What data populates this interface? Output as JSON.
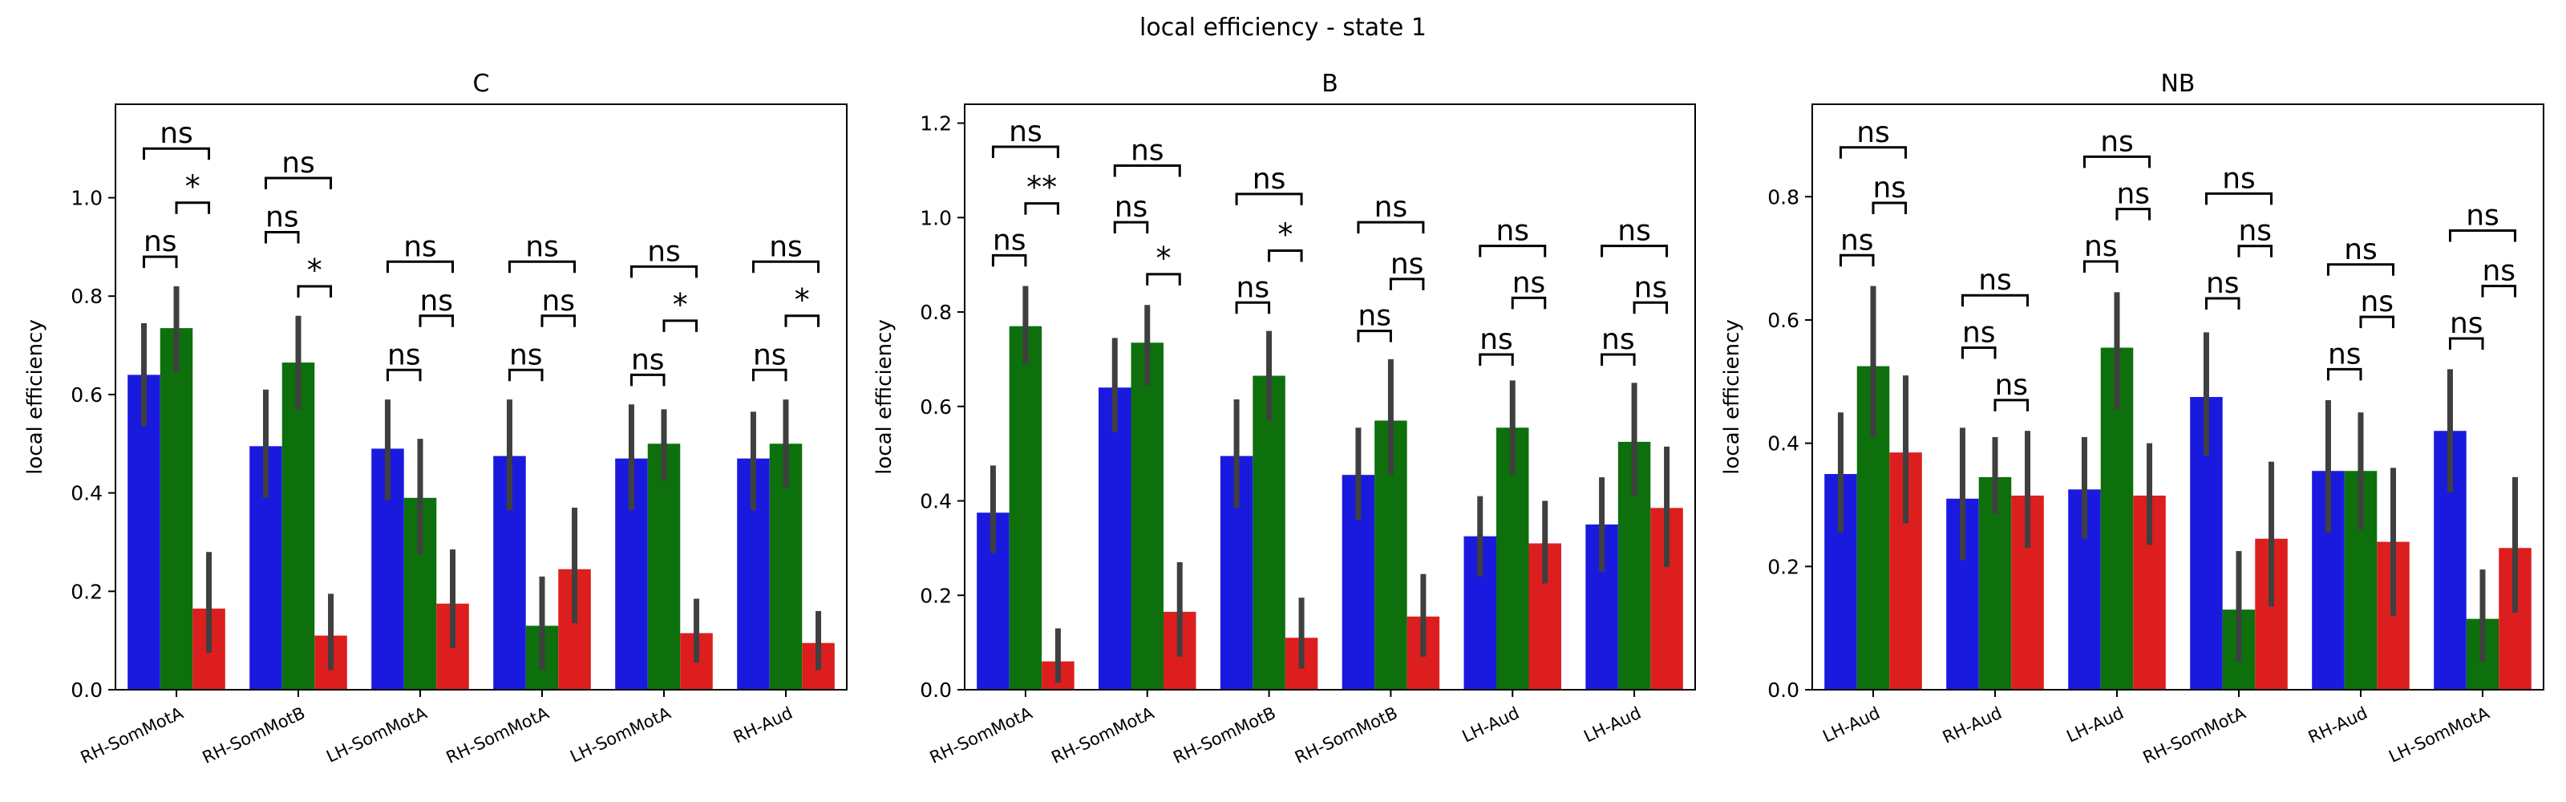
{
  "figure": {
    "suptitle": "local efficiency - state 1",
    "colors": {
      "blue": "#1a1adf",
      "green": "#0d700d",
      "red": "#dd1e1e",
      "errorbar": "#3f3f3f"
    }
  },
  "chart_data": [
    {
      "type": "bar",
      "title": "C",
      "xlabel": "",
      "ylabel": "local efficiency",
      "ylim": [
        0,
        1.19
      ],
      "yticks": [
        "0.0",
        "0.2",
        "0.4",
        "0.6",
        "0.8",
        "1.0"
      ],
      "categories": [
        "RH-SomMotA",
        "RH-SomMotB",
        "LH-SomMotA",
        "RH-SomMotA",
        "LH-SomMotA",
        "RH-Aud"
      ],
      "series": [
        {
          "color": "blue",
          "values": [
            0.64,
            0.495,
            0.49,
            0.475,
            0.47,
            0.47
          ],
          "errors": [
            [
              0.535,
              0.745
            ],
            [
              0.39,
              0.61
            ],
            [
              0.385,
              0.59
            ],
            [
              0.365,
              0.59
            ],
            [
              0.365,
              0.58
            ],
            [
              0.365,
              0.565
            ]
          ]
        },
        {
          "color": "green",
          "values": [
            0.735,
            0.665,
            0.39,
            0.13,
            0.5,
            0.5
          ],
          "errors": [
            [
              0.645,
              0.82
            ],
            [
              0.57,
              0.76
            ],
            [
              0.275,
              0.51
            ],
            [
              0.04,
              0.23
            ],
            [
              0.425,
              0.57
            ],
            [
              0.41,
              0.59
            ]
          ]
        },
        {
          "color": "red",
          "values": [
            0.165,
            0.11,
            0.175,
            0.245,
            0.115,
            0.095
          ],
          "errors": [
            [
              0.075,
              0.28
            ],
            [
              0.04,
              0.195
            ],
            [
              0.085,
              0.285
            ],
            [
              0.135,
              0.37
            ],
            [
              0.055,
              0.185
            ],
            [
              0.04,
              0.16
            ]
          ]
        }
      ],
      "annotations": [
        {
          "category": 0,
          "pairs": [
            {
              "from": 0,
              "to": 1,
              "label": "ns",
              "y": 0.88
            },
            {
              "from": 1,
              "to": 2,
              "label": "*",
              "y": 0.99
            },
            {
              "from": 0,
              "to": 2,
              "label": "ns",
              "y": 1.1
            }
          ]
        },
        {
          "category": 1,
          "pairs": [
            {
              "from": 0,
              "to": 1,
              "label": "ns",
              "y": 0.93
            },
            {
              "from": 1,
              "to": 2,
              "label": "*",
              "y": 0.82
            },
            {
              "from": 0,
              "to": 2,
              "label": "ns",
              "y": 1.04
            }
          ]
        },
        {
          "category": 2,
          "pairs": [
            {
              "from": 0,
              "to": 1,
              "label": "ns",
              "y": 0.65
            },
            {
              "from": 1,
              "to": 2,
              "label": "ns",
              "y": 0.76
            },
            {
              "from": 0,
              "to": 2,
              "label": "ns",
              "y": 0.87
            }
          ]
        },
        {
          "category": 3,
          "pairs": [
            {
              "from": 0,
              "to": 1,
              "label": "ns",
              "y": 0.65
            },
            {
              "from": 1,
              "to": 2,
              "label": "ns",
              "y": 0.76
            },
            {
              "from": 0,
              "to": 2,
              "label": "ns",
              "y": 0.87
            }
          ]
        },
        {
          "category": 4,
          "pairs": [
            {
              "from": 0,
              "to": 1,
              "label": "ns",
              "y": 0.64
            },
            {
              "from": 1,
              "to": 2,
              "label": "*",
              "y": 0.75
            },
            {
              "from": 0,
              "to": 2,
              "label": "ns",
              "y": 0.86
            }
          ]
        },
        {
          "category": 5,
          "pairs": [
            {
              "from": 0,
              "to": 1,
              "label": "ns",
              "y": 0.65
            },
            {
              "from": 1,
              "to": 2,
              "label": "*",
              "y": 0.76
            },
            {
              "from": 0,
              "to": 2,
              "label": "ns",
              "y": 0.87
            }
          ]
        }
      ]
    },
    {
      "type": "bar",
      "title": "B",
      "xlabel": "",
      "ylabel": "local efficiency",
      "ylim": [
        0,
        1.24
      ],
      "yticks": [
        "0.0",
        "0.2",
        "0.4",
        "0.6",
        "0.8",
        "1.0",
        "1.2"
      ],
      "categories": [
        "RH-SomMotA",
        "RH-SomMotA",
        "RH-SomMotB",
        "RH-SomMotB",
        "LH-Aud",
        "LH-Aud"
      ],
      "series": [
        {
          "color": "blue",
          "values": [
            0.375,
            0.64,
            0.495,
            0.455,
            0.325,
            0.35
          ],
          "errors": [
            [
              0.29,
              0.475
            ],
            [
              0.545,
              0.745
            ],
            [
              0.385,
              0.615
            ],
            [
              0.36,
              0.555
            ],
            [
              0.24,
              0.41
            ],
            [
              0.25,
              0.45
            ]
          ]
        },
        {
          "color": "green",
          "values": [
            0.77,
            0.735,
            0.665,
            0.57,
            0.555,
            0.525
          ],
          "errors": [
            [
              0.69,
              0.855
            ],
            [
              0.645,
              0.815
            ],
            [
              0.57,
              0.76
            ],
            [
              0.455,
              0.7
            ],
            [
              0.455,
              0.655
            ],
            [
              0.41,
              0.65
            ]
          ]
        },
        {
          "color": "red",
          "values": [
            0.06,
            0.165,
            0.11,
            0.155,
            0.31,
            0.385
          ],
          "errors": [
            [
              0.015,
              0.13
            ],
            [
              0.07,
              0.27
            ],
            [
              0.045,
              0.195
            ],
            [
              0.07,
              0.245
            ],
            [
              0.225,
              0.4
            ],
            [
              0.26,
              0.515
            ]
          ]
        }
      ],
      "annotations": [
        {
          "category": 0,
          "pairs": [
            {
              "from": 0,
              "to": 1,
              "label": "ns",
              "y": 0.92
            },
            {
              "from": 1,
              "to": 2,
              "label": "**",
              "y": 1.03
            },
            {
              "from": 0,
              "to": 2,
              "label": "ns",
              "y": 1.15
            }
          ]
        },
        {
          "category": 1,
          "pairs": [
            {
              "from": 0,
              "to": 1,
              "label": "ns",
              "y": 0.99
            },
            {
              "from": 1,
              "to": 2,
              "label": "*",
              "y": 0.88
            },
            {
              "from": 0,
              "to": 2,
              "label": "ns",
              "y": 1.11
            }
          ]
        },
        {
          "category": 2,
          "pairs": [
            {
              "from": 0,
              "to": 1,
              "label": "ns",
              "y": 0.82
            },
            {
              "from": 1,
              "to": 2,
              "label": "*",
              "y": 0.93
            },
            {
              "from": 0,
              "to": 2,
              "label": "ns",
              "y": 1.05
            }
          ]
        },
        {
          "category": 3,
          "pairs": [
            {
              "from": 0,
              "to": 1,
              "label": "ns",
              "y": 0.76
            },
            {
              "from": 1,
              "to": 2,
              "label": "ns",
              "y": 0.87
            },
            {
              "from": 0,
              "to": 2,
              "label": "ns",
              "y": 0.99
            }
          ]
        },
        {
          "category": 4,
          "pairs": [
            {
              "from": 0,
              "to": 1,
              "label": "ns",
              "y": 0.71
            },
            {
              "from": 1,
              "to": 2,
              "label": "ns",
              "y": 0.83
            },
            {
              "from": 0,
              "to": 2,
              "label": "ns",
              "y": 0.94
            }
          ]
        },
        {
          "category": 5,
          "pairs": [
            {
              "from": 0,
              "to": 1,
              "label": "ns",
              "y": 0.71
            },
            {
              "from": 1,
              "to": 2,
              "label": "ns",
              "y": 0.82
            },
            {
              "from": 0,
              "to": 2,
              "label": "ns",
              "y": 0.94
            }
          ]
        }
      ]
    },
    {
      "type": "bar",
      "title": "NB",
      "xlabel": "",
      "ylabel": "local efficiency",
      "ylim": [
        0,
        0.95
      ],
      "yticks": [
        "0.0",
        "0.2",
        "0.4",
        "0.6",
        "0.8"
      ],
      "categories": [
        "LH-Aud",
        "RH-Aud",
        "LH-Aud",
        "RH-SomMotA",
        "RH-Aud",
        "LH-SomMotA"
      ],
      "series": [
        {
          "color": "blue",
          "values": [
            0.35,
            0.31,
            0.325,
            0.475,
            0.355,
            0.42
          ],
          "errors": [
            [
              0.255,
              0.45
            ],
            [
              0.21,
              0.425
            ],
            [
              0.245,
              0.41
            ],
            [
              0.38,
              0.58
            ],
            [
              0.255,
              0.47
            ],
            [
              0.32,
              0.52
            ]
          ]
        },
        {
          "color": "green",
          "values": [
            0.525,
            0.345,
            0.555,
            0.13,
            0.355,
            0.115
          ],
          "errors": [
            [
              0.41,
              0.655
            ],
            [
              0.285,
              0.41
            ],
            [
              0.455,
              0.645
            ],
            [
              0.045,
              0.225
            ],
            [
              0.26,
              0.45
            ],
            [
              0.045,
              0.195
            ]
          ]
        },
        {
          "color": "red",
          "values": [
            0.385,
            0.315,
            0.315,
            0.245,
            0.24,
            0.23
          ],
          "errors": [
            [
              0.27,
              0.51
            ],
            [
              0.23,
              0.42
            ],
            [
              0.235,
              0.4
            ],
            [
              0.135,
              0.37
            ],
            [
              0.12,
              0.36
            ],
            [
              0.125,
              0.345
            ]
          ]
        }
      ],
      "annotations": [
        {
          "category": 0,
          "pairs": [
            {
              "from": 0,
              "to": 1,
              "label": "ns",
              "y": 0.705
            },
            {
              "from": 1,
              "to": 2,
              "label": "ns",
              "y": 0.79
            },
            {
              "from": 0,
              "to": 2,
              "label": "ns",
              "y": 0.88
            }
          ]
        },
        {
          "category": 1,
          "pairs": [
            {
              "from": 0,
              "to": 1,
              "label": "ns",
              "y": 0.555
            },
            {
              "from": 1,
              "to": 2,
              "label": "ns",
              "y": 0.47
            },
            {
              "from": 0,
              "to": 2,
              "label": "ns",
              "y": 0.64
            }
          ]
        },
        {
          "category": 2,
          "pairs": [
            {
              "from": 0,
              "to": 1,
              "label": "ns",
              "y": 0.695
            },
            {
              "from": 1,
              "to": 2,
              "label": "ns",
              "y": 0.78
            },
            {
              "from": 0,
              "to": 2,
              "label": "ns",
              "y": 0.865
            }
          ]
        },
        {
          "category": 3,
          "pairs": [
            {
              "from": 0,
              "to": 1,
              "label": "ns",
              "y": 0.635
            },
            {
              "from": 1,
              "to": 2,
              "label": "ns",
              "y": 0.72
            },
            {
              "from": 0,
              "to": 2,
              "label": "ns",
              "y": 0.805
            }
          ]
        },
        {
          "category": 4,
          "pairs": [
            {
              "from": 0,
              "to": 1,
              "label": "ns",
              "y": 0.52
            },
            {
              "from": 1,
              "to": 2,
              "label": "ns",
              "y": 0.605
            },
            {
              "from": 0,
              "to": 2,
              "label": "ns",
              "y": 0.69
            }
          ]
        },
        {
          "category": 5,
          "pairs": [
            {
              "from": 0,
              "to": 1,
              "label": "ns",
              "y": 0.57
            },
            {
              "from": 1,
              "to": 2,
              "label": "ns",
              "y": 0.655
            },
            {
              "from": 0,
              "to": 2,
              "label": "ns",
              "y": 0.745
            }
          ]
        }
      ]
    }
  ]
}
